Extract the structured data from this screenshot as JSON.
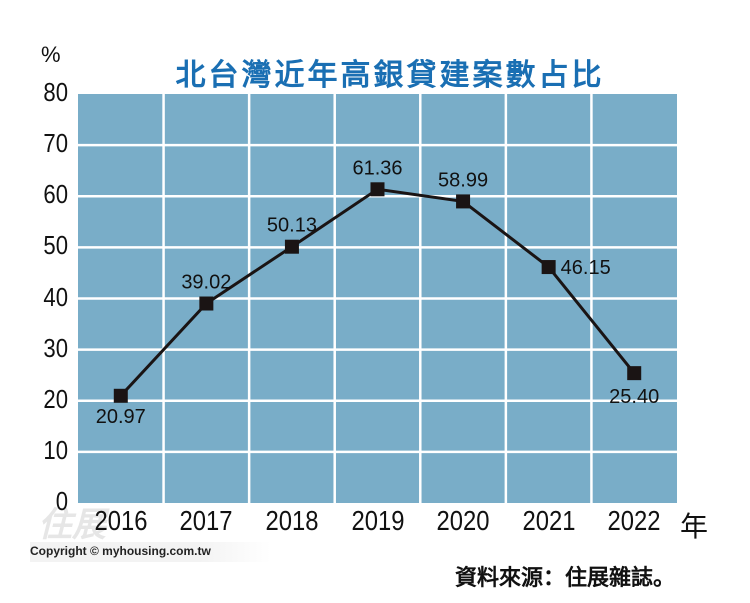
{
  "chart_data": {
    "type": "line",
    "title": "北台灣近年高銀貸建案數占比",
    "xlabel": "年",
    "ylabel": "%",
    "categories": [
      "2016",
      "2017",
      "2018",
      "2019",
      "2020",
      "2021",
      "2022"
    ],
    "values": [
      20.97,
      39.02,
      50.13,
      61.36,
      58.99,
      46.15,
      25.4
    ],
    "value_labels": [
      "20.97",
      "39.02",
      "50.13",
      "61.36",
      "58.99",
      "46.15",
      "25.40"
    ],
    "yticks": [
      "0",
      "10",
      "20",
      "30",
      "40",
      "50",
      "60",
      "70",
      "80"
    ],
    "ylim": [
      0,
      80
    ],
    "grid": true,
    "legend": null,
    "colors": {
      "title": "#1a6fb3",
      "plot_bg": "#79adc8",
      "grid": "#ffffff",
      "line": "#1a1414"
    }
  },
  "header": {
    "title": "北台灣近年高銀貸建案數占比",
    "unit": "%"
  },
  "axis": {
    "x_unit": "年"
  },
  "footer": {
    "source": "資料來源：住展雜誌。",
    "copyright": "Copyright © myhousing.com.tw",
    "watermark": "住展"
  }
}
